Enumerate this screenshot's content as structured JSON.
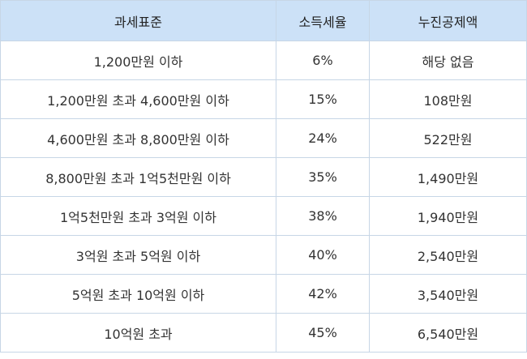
{
  "table": {
    "header": [
      "과세표준",
      "소득세율",
      "누진공제액"
    ],
    "rows": [
      [
        "1,200만원 이하",
        "6%",
        "해당 없음"
      ],
      [
        "1,200만원 초과 4,600만원 이하",
        "15%",
        "108만원"
      ],
      [
        "4,600만원 초과 8,800만원 이하",
        "24%",
        "522만원"
      ],
      [
        "8,800만원 초과 1억5천만원 이하",
        "35%",
        "1,490만원"
      ],
      [
        "1억5천만원 초과 3억원 이하",
        "38%",
        "1,940만원"
      ],
      [
        "3억원 초과 5억원 이하",
        "40%",
        "2,540만원"
      ],
      [
        "5억원 초과 10억원 이하",
        "42%",
        "3,540만원"
      ],
      [
        "10억원 초과",
        "45%",
        "6,540만원"
      ]
    ]
  }
}
